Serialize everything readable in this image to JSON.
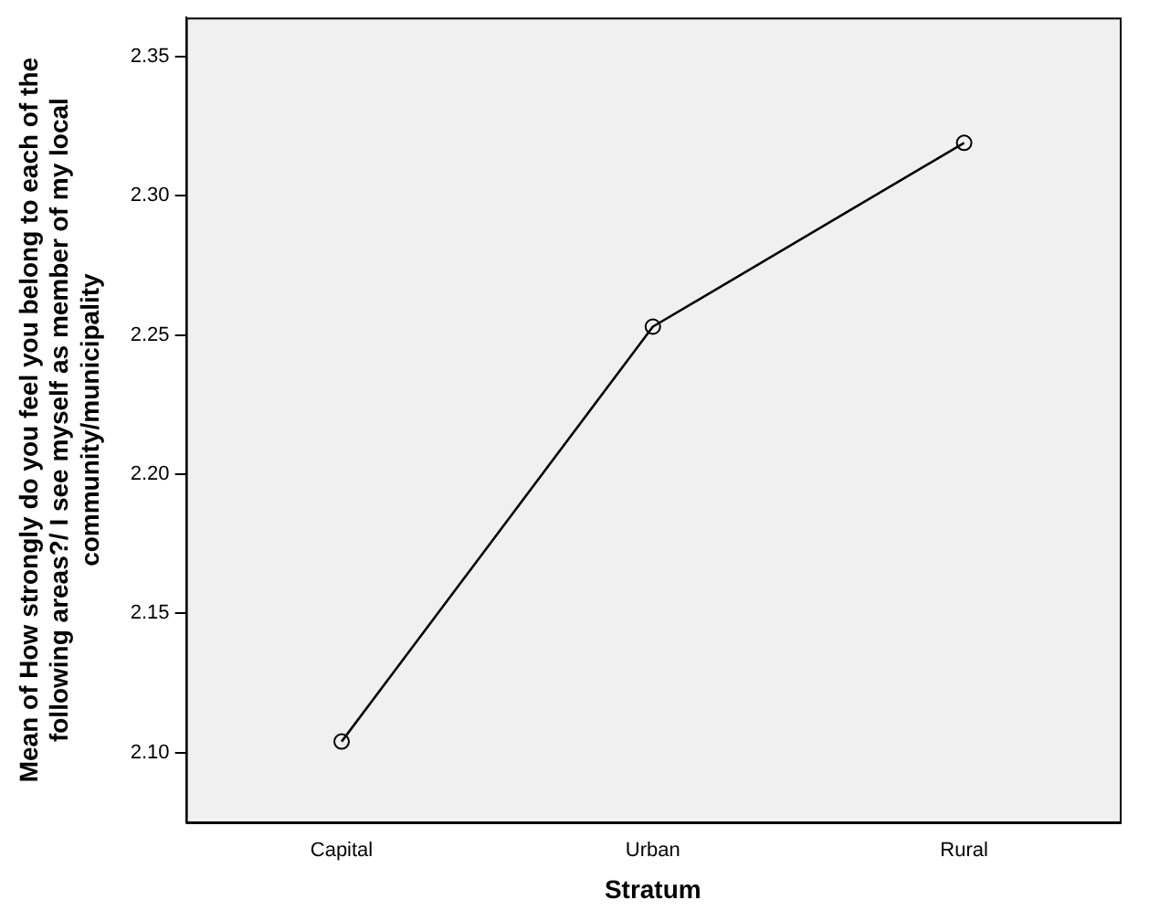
{
  "chart_data": {
    "type": "line",
    "xlabel": "Stratum",
    "ylabel": "Mean of How strongly do you feel you belong to each of the following areas?/ I see myself as member of my local community/municipality",
    "categories": [
      "Capital",
      "Urban",
      "Rural"
    ],
    "series": [
      {
        "color": "#000000",
        "values": [
          2.104,
          2.253,
          2.319
        ]
      }
    ],
    "ylim": [
      2.075,
      2.364
    ],
    "yticks": [
      {
        "value": 2.1,
        "label": "2.10"
      },
      2.15,
      {
        "value": 2.2,
        "label": "2.20"
      },
      2.25,
      {
        "value": 2.3,
        "label": "2.30"
      },
      2.35
    ],
    "grid": false,
    "legend": false,
    "marker": "circle",
    "line_style": "solid"
  }
}
